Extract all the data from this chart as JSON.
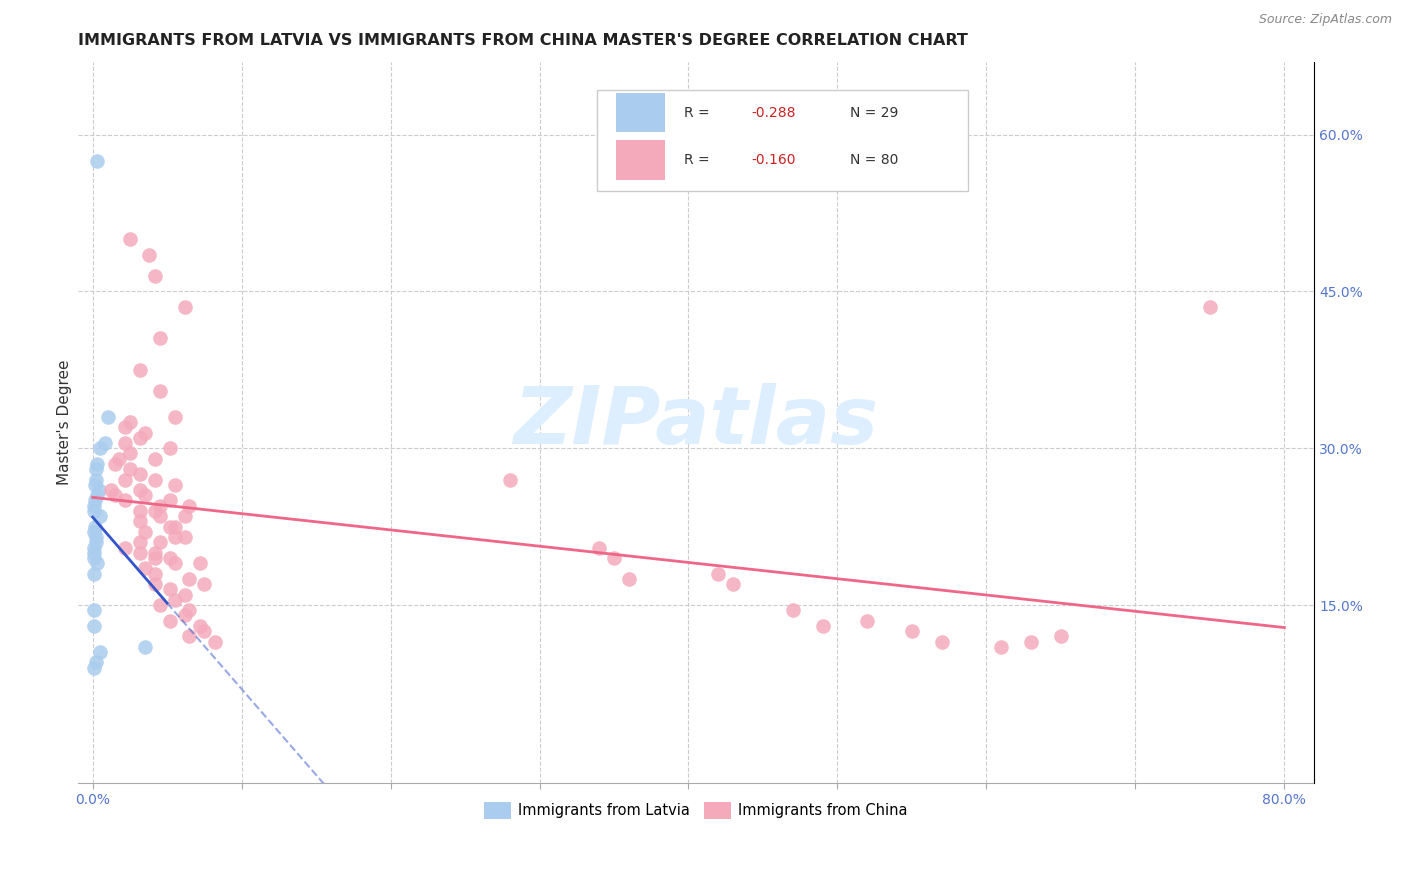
{
  "title": "IMMIGRANTS FROM LATVIA VS IMMIGRANTS FROM CHINA MASTER'S DEGREE CORRELATION CHART",
  "source": "Source: ZipAtlas.com",
  "ylabel": "Master's Degree",
  "x_tick_labels": [
    "0.0%",
    "",
    "",
    "",
    "",
    "",
    "",
    "",
    "80.0%"
  ],
  "x_tick_vals": [
    0.0,
    10.0,
    20.0,
    30.0,
    40.0,
    50.0,
    60.0,
    70.0,
    80.0
  ],
  "y_tick_labels_right": [
    "60.0%",
    "45.0%",
    "30.0%",
    "15.0%"
  ],
  "y_tick_vals_right": [
    60.0,
    45.0,
    30.0,
    15.0
  ],
  "xlim": [
    -1.0,
    82.0
  ],
  "ylim": [
    -2.0,
    67.0
  ],
  "legend_bottom_1": "Immigrants from Latvia",
  "legend_bottom_2": "Immigrants from China",
  "watermark": "ZIPatlas",
  "latvia_color": "#aaccee",
  "china_color": "#f4aabb",
  "latvia_line_color": "#3355cc",
  "china_line_color": "#ee6688",
  "bg_color": "#ffffff",
  "grid_color": "#cccccc",
  "title_fontsize": 11.5,
  "axis_label_fontsize": 11,
  "tick_fontsize": 10,
  "watermark_color": "#ddeeff",
  "source_color": "#888888",
  "legend_entry_1_color": "#aaccee",
  "legend_entry_2_color": "#f4aabb",
  "latvia_scatter": [
    [
      0.3,
      57.5
    ],
    [
      1.0,
      33.0
    ],
    [
      0.8,
      30.5
    ],
    [
      0.5,
      30.0
    ],
    [
      0.3,
      28.5
    ],
    [
      0.2,
      28.0
    ],
    [
      0.2,
      27.0
    ],
    [
      0.15,
      26.5
    ],
    [
      0.4,
      26.0
    ],
    [
      0.3,
      25.5
    ],
    [
      0.15,
      25.0
    ],
    [
      0.1,
      24.5
    ],
    [
      0.1,
      24.0
    ],
    [
      0.5,
      23.5
    ],
    [
      0.15,
      22.5
    ],
    [
      0.1,
      22.0
    ],
    [
      0.2,
      21.5
    ],
    [
      0.2,
      21.0
    ],
    [
      0.1,
      20.5
    ],
    [
      0.1,
      20.0
    ],
    [
      0.1,
      19.5
    ],
    [
      0.3,
      19.0
    ],
    [
      0.1,
      18.0
    ],
    [
      0.1,
      14.5
    ],
    [
      0.1,
      13.0
    ],
    [
      3.5,
      11.0
    ],
    [
      0.5,
      10.5
    ],
    [
      0.2,
      9.5
    ],
    [
      0.1,
      9.0
    ]
  ],
  "china_scatter": [
    [
      2.5,
      50.0
    ],
    [
      3.8,
      48.5
    ],
    [
      4.2,
      46.5
    ],
    [
      6.2,
      43.5
    ],
    [
      4.5,
      40.5
    ],
    [
      3.2,
      37.5
    ],
    [
      4.5,
      35.5
    ],
    [
      5.5,
      33.0
    ],
    [
      2.5,
      32.5
    ],
    [
      2.2,
      32.0
    ],
    [
      3.5,
      31.5
    ],
    [
      3.2,
      31.0
    ],
    [
      2.2,
      30.5
    ],
    [
      5.2,
      30.0
    ],
    [
      2.5,
      29.5
    ],
    [
      4.2,
      29.0
    ],
    [
      1.8,
      29.0
    ],
    [
      1.5,
      28.5
    ],
    [
      2.5,
      28.0
    ],
    [
      3.2,
      27.5
    ],
    [
      4.2,
      27.0
    ],
    [
      2.2,
      27.0
    ],
    [
      5.5,
      26.5
    ],
    [
      3.2,
      26.0
    ],
    [
      1.2,
      26.0
    ],
    [
      1.5,
      25.5
    ],
    [
      3.5,
      25.5
    ],
    [
      5.2,
      25.0
    ],
    [
      2.2,
      25.0
    ],
    [
      4.5,
      24.5
    ],
    [
      6.5,
      24.5
    ],
    [
      4.2,
      24.0
    ],
    [
      3.2,
      24.0
    ],
    [
      6.2,
      23.5
    ],
    [
      4.5,
      23.5
    ],
    [
      3.2,
      23.0
    ],
    [
      5.2,
      22.5
    ],
    [
      5.5,
      22.5
    ],
    [
      3.5,
      22.0
    ],
    [
      6.2,
      21.5
    ],
    [
      5.5,
      21.5
    ],
    [
      4.5,
      21.0
    ],
    [
      3.2,
      21.0
    ],
    [
      2.2,
      20.5
    ],
    [
      4.2,
      20.0
    ],
    [
      3.2,
      20.0
    ],
    [
      5.2,
      19.5
    ],
    [
      4.2,
      19.5
    ],
    [
      7.2,
      19.0
    ],
    [
      5.5,
      19.0
    ],
    [
      3.5,
      18.5
    ],
    [
      4.2,
      18.0
    ],
    [
      6.5,
      17.5
    ],
    [
      7.5,
      17.0
    ],
    [
      4.2,
      17.0
    ],
    [
      5.2,
      16.5
    ],
    [
      6.2,
      16.0
    ],
    [
      5.5,
      15.5
    ],
    [
      4.5,
      15.0
    ],
    [
      6.5,
      14.5
    ],
    [
      6.2,
      14.0
    ],
    [
      5.2,
      13.5
    ],
    [
      7.2,
      13.0
    ],
    [
      7.5,
      12.5
    ],
    [
      6.5,
      12.0
    ],
    [
      8.2,
      11.5
    ],
    [
      28.0,
      27.0
    ],
    [
      34.0,
      20.5
    ],
    [
      35.0,
      19.5
    ],
    [
      36.0,
      17.5
    ],
    [
      42.0,
      18.0
    ],
    [
      43.0,
      17.0
    ],
    [
      47.0,
      14.5
    ],
    [
      49.0,
      13.0
    ],
    [
      52.0,
      13.5
    ],
    [
      55.0,
      12.5
    ],
    [
      57.0,
      11.5
    ],
    [
      61.0,
      11.0
    ],
    [
      63.0,
      11.5
    ],
    [
      65.0,
      12.0
    ],
    [
      75.0,
      43.5
    ]
  ]
}
